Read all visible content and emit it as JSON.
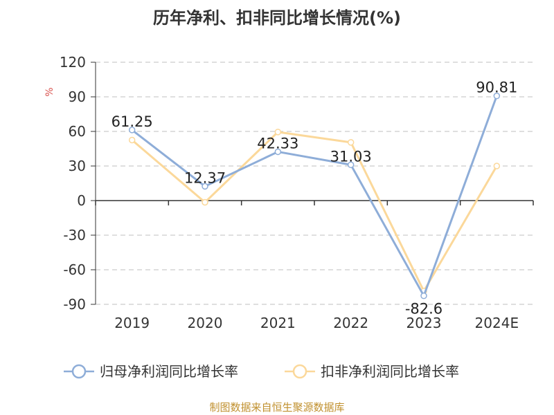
{
  "chart_data": {
    "type": "line",
    "title": "历年净利、扣非同比增长情况(%)",
    "ylabel": "%",
    "categories": [
      "2019",
      "2020",
      "2021",
      "2022",
      "2023",
      "2024E"
    ],
    "ylim": [
      -90,
      120
    ],
    "yticks": [
      120,
      90,
      60,
      30,
      0,
      -30,
      -60,
      -90
    ],
    "grid": true,
    "legend_position": "bottom",
    "series": [
      {
        "name": "归母净利润同比增长率",
        "color": "#8eadd8",
        "values": [
          61.25,
          12.37,
          42.33,
          31.03,
          -82.6,
          90.81
        ],
        "labels": [
          "61.25",
          "12.37",
          "42.33",
          "31.03",
          "-82.6",
          "90.81"
        ]
      },
      {
        "name": "扣非净利润同比增长率",
        "color": "#fbd89a",
        "values": [
          52.5,
          -1.5,
          59.5,
          50.5,
          -78.5,
          30
        ]
      }
    ],
    "source": "制图数据来自恒生聚源数据库"
  }
}
